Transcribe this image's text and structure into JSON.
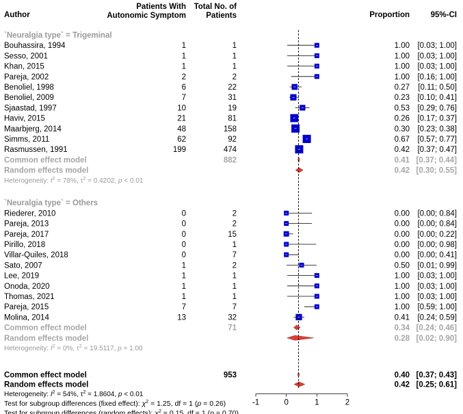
{
  "chart_data": {
    "type": "forest",
    "axis": {
      "min": -1,
      "max": 2,
      "ticks": [
        -1,
        0,
        1,
        2
      ]
    },
    "reference_line": 0.4,
    "headers": {
      "author": "Author",
      "events_line1": "Patients With",
      "events_line2": "Autonomic Symptom",
      "total_line1": "Total No. of",
      "total_line2": "Patients",
      "proportion": "Proportion",
      "ci": "95%-CI"
    },
    "subgroups": [
      {
        "title": "`Neuralgia type` = Trigeminal",
        "studies": [
          {
            "author": "Bouhassira, 1994",
            "events": 1,
            "total": 1,
            "prop": 1.0,
            "lo": 0.03,
            "hi": 1.0,
            "prop_text": "1.00",
            "ci_text": "[0.03; 1.00]"
          },
          {
            "author": "Sesso, 2001",
            "events": 1,
            "total": 1,
            "prop": 1.0,
            "lo": 0.03,
            "hi": 1.0,
            "prop_text": "1.00",
            "ci_text": "[0.03; 1.00]"
          },
          {
            "author": "Khan, 2015",
            "events": 1,
            "total": 1,
            "prop": 1.0,
            "lo": 0.03,
            "hi": 1.0,
            "prop_text": "1.00",
            "ci_text": "[0.03; 1.00]"
          },
          {
            "author": "Pareja, 2002",
            "events": 2,
            "total": 2,
            "prop": 1.0,
            "lo": 0.16,
            "hi": 1.0,
            "prop_text": "1.00",
            "ci_text": "[0.16; 1.00]"
          },
          {
            "author": "Benoliel, 1998",
            "events": 6,
            "total": 22,
            "prop": 0.27,
            "lo": 0.11,
            "hi": 0.5,
            "prop_text": "0.27",
            "ci_text": "[0.11; 0.50]"
          },
          {
            "author": "Benoliel, 2009",
            "events": 7,
            "total": 31,
            "prop": 0.23,
            "lo": 0.1,
            "hi": 0.41,
            "prop_text": "0.23",
            "ci_text": "[0.10; 0.41]"
          },
          {
            "author": "Sjaastad, 1997",
            "events": 10,
            "total": 19,
            "prop": 0.53,
            "lo": 0.29,
            "hi": 0.76,
            "prop_text": "0.53",
            "ci_text": "[0.29; 0.76]"
          },
          {
            "author": "Haviv, 2015",
            "events": 21,
            "total": 81,
            "prop": 0.26,
            "lo": 0.17,
            "hi": 0.37,
            "prop_text": "0.26",
            "ci_text": "[0.17; 0.37]"
          },
          {
            "author": "Maarbjerg, 2014",
            "events": 48,
            "total": 158,
            "prop": 0.3,
            "lo": 0.23,
            "hi": 0.38,
            "prop_text": "0.30",
            "ci_text": "[0.23; 0.38]"
          },
          {
            "author": "Simms, 2011",
            "events": 62,
            "total": 92,
            "prop": 0.67,
            "lo": 0.57,
            "hi": 0.77,
            "prop_text": "0.67",
            "ci_text": "[0.57; 0.77]"
          },
          {
            "author": "Rasmussen, 1991",
            "events": 199,
            "total": 474,
            "prop": 0.42,
            "lo": 0.37,
            "hi": 0.47,
            "prop_text": "0.42",
            "ci_text": "[0.37; 0.47]"
          }
        ],
        "common": {
          "label": "Common effect model",
          "total": 882,
          "est": 0.41,
          "lo": 0.37,
          "hi": 0.44,
          "prop_text": "0.41",
          "ci_text": "[0.37; 0.44]"
        },
        "random": {
          "label": "Random effects model",
          "est": 0.42,
          "lo": 0.3,
          "hi": 0.55,
          "pi_lo": 0.3,
          "pi_hi": 0.55,
          "prop_text": "0.42",
          "ci_text": "[0.30; 0.55]"
        },
        "heterogeneity": {
          "prefix": "Heterogeneity: ",
          "i2_label": "I",
          "i2_value": " = 78%, ",
          "tau2_label": "τ",
          "tau2_value": " = 0.4202, ",
          "p_label": "p",
          "p_value": " < 0.01"
        }
      },
      {
        "title": "`Neuralgia type` = Others",
        "studies": [
          {
            "author": "Riederer, 2010",
            "events": 0,
            "total": 2,
            "prop": 0.0,
            "lo": 0.0,
            "hi": 0.84,
            "prop_text": "0.00",
            "ci_text": "[0.00; 0.84]"
          },
          {
            "author": "Pareja, 2013",
            "events": 0,
            "total": 2,
            "prop": 0.0,
            "lo": 0.0,
            "hi": 0.84,
            "prop_text": "0.00",
            "ci_text": "[0.00; 0.84]"
          },
          {
            "author": "Pareja, 2017",
            "events": 0,
            "total": 15,
            "prop": 0.0,
            "lo": 0.0,
            "hi": 0.22,
            "prop_text": "0.00",
            "ci_text": "[0.00; 0.22]"
          },
          {
            "author": "Pirillo, 2018",
            "events": 0,
            "total": 1,
            "prop": 0.0,
            "lo": 0.0,
            "hi": 0.98,
            "prop_text": "0.00",
            "ci_text": "[0.00; 0.98]"
          },
          {
            "author": "Villar-Quiles, 2018",
            "events": 0,
            "total": 7,
            "prop": 0.0,
            "lo": 0.0,
            "hi": 0.41,
            "prop_text": "0.00",
            "ci_text": "[0.00; 0.41]"
          },
          {
            "author": "Sato, 2007",
            "events": 1,
            "total": 2,
            "prop": 0.5,
            "lo": 0.01,
            "hi": 0.99,
            "prop_text": "0.50",
            "ci_text": "[0.01; 0.99]"
          },
          {
            "author": "Lee, 2019",
            "events": 1,
            "total": 1,
            "prop": 1.0,
            "lo": 0.03,
            "hi": 1.0,
            "prop_text": "1.00",
            "ci_text": "[0.03; 1.00]"
          },
          {
            "author": "Onoda, 2020",
            "events": 1,
            "total": 1,
            "prop": 1.0,
            "lo": 0.03,
            "hi": 1.0,
            "prop_text": "1.00",
            "ci_text": "[0.03; 1.00]"
          },
          {
            "author": "Thomas, 2021",
            "events": 1,
            "total": 1,
            "prop": 1.0,
            "lo": 0.03,
            "hi": 1.0,
            "prop_text": "1.00",
            "ci_text": "[0.03; 1.00]"
          },
          {
            "author": "Pareja, 2015",
            "events": 7,
            "total": 7,
            "prop": 1.0,
            "lo": 0.59,
            "hi": 1.0,
            "prop_text": "1.00",
            "ci_text": "[0.59; 1.00]"
          },
          {
            "author": "Molina, 2014",
            "events": 13,
            "total": 32,
            "prop": 0.41,
            "lo": 0.24,
            "hi": 0.59,
            "prop_text": "0.41",
            "ci_text": "[0.24; 0.59]"
          }
        ],
        "common": {
          "label": "Common effect model",
          "total": 71,
          "est": 0.34,
          "lo": 0.24,
          "hi": 0.46,
          "prop_text": "0.34",
          "ci_text": "[0.24; 0.46]"
        },
        "random": {
          "label": "Random effects model",
          "est": 0.28,
          "lo": 0.02,
          "hi": 0.9,
          "pi_lo": 0.02,
          "pi_hi": 0.9,
          "prop_text": "0.28",
          "ci_text": "[0.02; 0.90]"
        },
        "heterogeneity": {
          "prefix": "Heterogeneity: ",
          "i2_label": "I",
          "i2_value": " = 0%, ",
          "tau2_label": "τ",
          "tau2_value": " = 19.5117, ",
          "p_label": "p",
          "p_value": " = 1.00"
        }
      }
    ],
    "overall": {
      "common": {
        "label": "Common effect model",
        "total": 953,
        "est": 0.4,
        "lo": 0.37,
        "hi": 0.43,
        "prop_text": "0.40",
        "ci_text": "[0.37; 0.43]"
      },
      "random": {
        "label": "Random effects model",
        "est": 0.42,
        "lo": 0.25,
        "hi": 0.61,
        "prop_text": "0.42",
        "ci_text": "[0.25; 0.61]"
      },
      "heterogeneity": {
        "prefix": "Heterogeneity: ",
        "i2_label": "I",
        "i2_value": " = 54%, ",
        "tau2_label": "τ",
        "tau2_value": " = 1.8604, ",
        "p_label": "p",
        "p_value": " < 0.01"
      },
      "test_fixed": {
        "prefix": "Test for subgroup differences (fixed effect): ",
        "chi_label": "χ",
        "chi_value": " = 1.25, df = 1 (",
        "p_label": "p",
        "p_value": " = 0.26)"
      },
      "test_random": {
        "prefix": "Test for subgroup differences (random effects): ",
        "chi_label": "χ",
        "chi_value": " = 0.15, df = 1 (",
        "p_label": "p",
        "p_value": " = 0.70)"
      }
    }
  },
  "colors": {
    "square": "#0000cc",
    "diamond": "#e03c31",
    "grey_text": "#a6a6a6",
    "reference_line": "#000000"
  }
}
